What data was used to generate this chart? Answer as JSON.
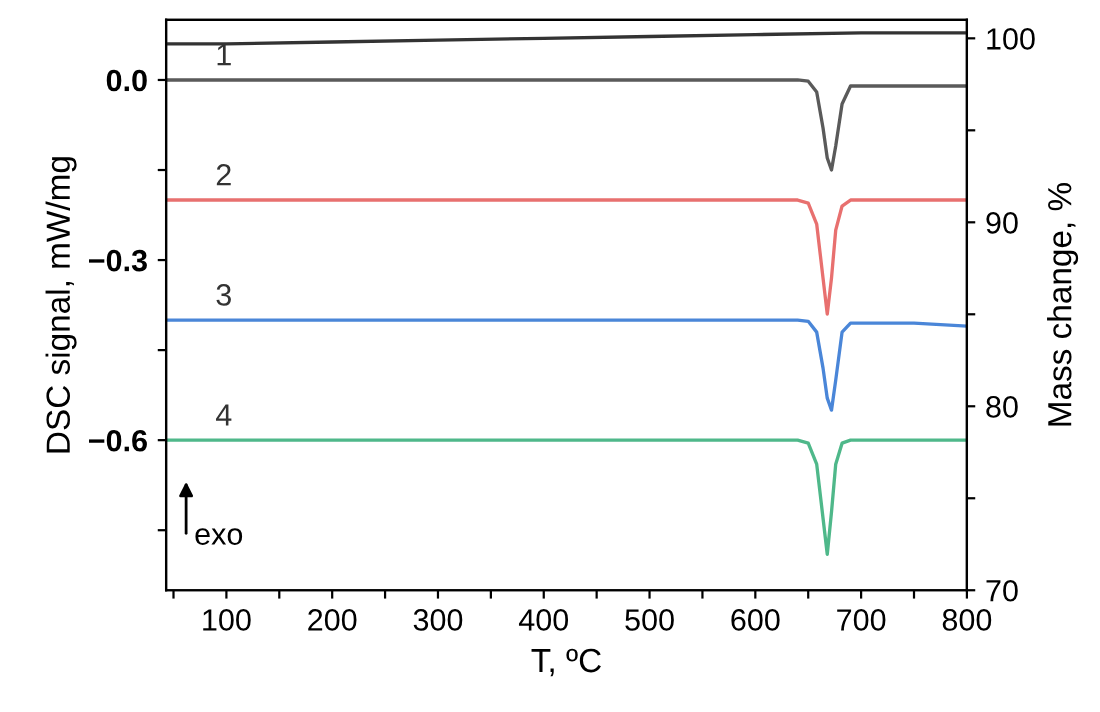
{
  "chart_data": {
    "type": "line",
    "xlabel": "T, ºC",
    "ylabel": "DSC signal, mW/mg",
    "y2label": "Mass change, %",
    "xlim": [
      43,
      800
    ],
    "xticks": [
      {
        "value": 50,
        "label": null
      },
      100,
      {
        "value": 150,
        "label": null
      },
      200,
      {
        "value": 250,
        "label": null
      },
      300,
      {
        "value": 350,
        "label": null
      },
      400,
      {
        "value": 450,
        "label": null
      },
      500,
      {
        "value": 550,
        "label": null
      },
      600,
      {
        "value": 650,
        "label": null
      },
      700,
      {
        "value": 750,
        "label": null
      },
      800
    ],
    "ylim": [
      -0.85,
      0.1
    ],
    "yticks": [
      {
        "value": -0.75,
        "label": null
      },
      {
        "value": -0.6,
        "label": "−0.6"
      },
      {
        "value": -0.45,
        "label": null
      },
      {
        "value": -0.3,
        "label": "−0.3"
      },
      {
        "value": -0.15,
        "label": null
      },
      {
        "value": 0.0,
        "label": "0.0"
      }
    ],
    "y2lim": [
      70,
      101
    ],
    "y2ticks": [
      70,
      {
        "value": 75,
        "label": null
      },
      80,
      {
        "value": 85,
        "label": null
      },
      90,
      {
        "value": 95,
        "label": null
      },
      100
    ],
    "grid": false,
    "legend": false,
    "marker": "none",
    "line_style": "solid",
    "series": [
      {
        "color": "#333333",
        "axis": "y2",
        "x": [
          43,
          100,
          200,
          300,
          400,
          500,
          600,
          700,
          800
        ],
        "values": [
          99.7,
          99.7,
          99.8,
          99.9,
          100,
          100.1,
          100.2,
          100.3,
          100.3
        ]
      },
      {
        "name": "1",
        "color": "#5a5a5a",
        "x": [
          43,
          100,
          200,
          300,
          400,
          500,
          600,
          640,
          650,
          658,
          664,
          668,
          672,
          676,
          682,
          690,
          700,
          750,
          800
        ],
        "values": [
          0,
          0,
          0,
          0,
          0,
          0,
          0,
          0,
          -0.002,
          -0.02,
          -0.08,
          -0.13,
          -0.15,
          -0.11,
          -0.04,
          -0.01,
          -0.01,
          -0.01,
          -0.01
        ]
      },
      {
        "name": "2",
        "color": "#e8706f",
        "x": [
          43,
          100,
          200,
          300,
          400,
          500,
          600,
          640,
          650,
          658,
          664,
          668,
          672,
          676,
          682,
          690,
          700,
          750,
          800
        ],
        "values": [
          -0.2,
          -0.2,
          -0.2,
          -0.2,
          -0.2,
          -0.2,
          -0.2,
          -0.2,
          -0.205,
          -0.24,
          -0.33,
          -0.39,
          -0.33,
          -0.25,
          -0.21,
          -0.2,
          -0.2,
          -0.2,
          -0.2
        ]
      },
      {
        "name": "3",
        "color": "#4a86d8",
        "x": [
          43,
          100,
          200,
          300,
          400,
          500,
          600,
          640,
          650,
          658,
          664,
          668,
          672,
          676,
          682,
          690,
          700,
          750,
          800
        ],
        "values": [
          -0.4,
          -0.4,
          -0.4,
          -0.4,
          -0.4,
          -0.4,
          -0.4,
          -0.4,
          -0.402,
          -0.42,
          -0.48,
          -0.53,
          -0.55,
          -0.5,
          -0.42,
          -0.405,
          -0.405,
          -0.405,
          -0.41
        ]
      },
      {
        "name": "4",
        "color": "#4fb88a",
        "x": [
          43,
          100,
          200,
          300,
          400,
          500,
          600,
          640,
          650,
          658,
          664,
          668,
          672,
          676,
          682,
          690,
          700,
          750,
          800
        ],
        "values": [
          -0.6,
          -0.6,
          -0.6,
          -0.6,
          -0.6,
          -0.6,
          -0.6,
          -0.6,
          -0.605,
          -0.64,
          -0.73,
          -0.79,
          -0.72,
          -0.64,
          -0.605,
          -0.6,
          -0.6,
          -0.6,
          -0.6
        ]
      }
    ],
    "annotations": [
      "exo"
    ]
  }
}
